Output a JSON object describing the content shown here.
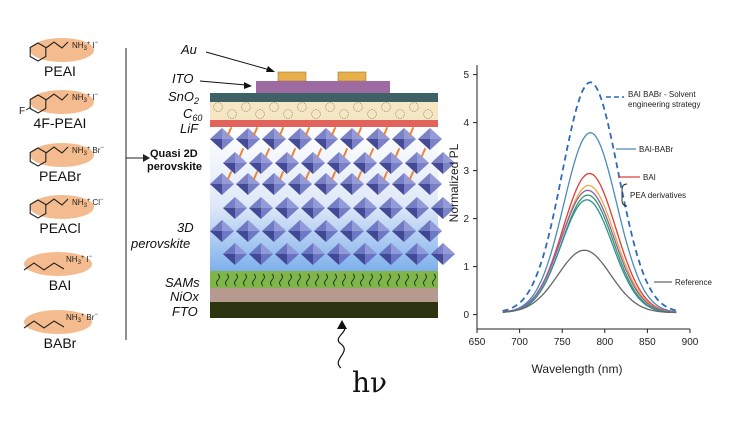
{
  "molecules": [
    {
      "name": "PEAI",
      "ion": "NH",
      "charge_sup": "+",
      "anion": "I",
      "ring": "phenyl",
      "substituent": ""
    },
    {
      "name": "4F-PEAI",
      "ion": "NH",
      "charge_sup": "+",
      "anion": "I",
      "ring": "phenyl",
      "substituent": "F"
    },
    {
      "name": "PEABr",
      "ion": "NH",
      "charge_sup": "+",
      "anion": "Br",
      "ring": "phenyl",
      "substituent": ""
    },
    {
      "name": "PEACl",
      "ion": "NH",
      "charge_sup": "+",
      "anion": "Cl",
      "ring": "phenyl",
      "substituent": ""
    },
    {
      "name": "BAI",
      "ion": "NH",
      "charge_sup": "+",
      "anion": "I",
      "ring": "butyl",
      "substituent": ""
    },
    {
      "name": "BABr",
      "ion": "NH",
      "charge_sup": "+",
      "anion": "Br",
      "ring": "butyl",
      "substituent": ""
    }
  ],
  "device": {
    "layers": [
      "Au",
      "ITO",
      "SnO2",
      "C60",
      "LiF",
      "Quasi 2D perovskite",
      "3D perovskite",
      "SAMs",
      "NiOx",
      "FTO"
    ],
    "labels": {
      "au": "Au",
      "ito": "ITO",
      "sno2": "SnO",
      "sno2_sub": "2",
      "c60": "C",
      "c60_sub": "60",
      "lif": "LiF",
      "quasi2d_line1": "Quasi 2D",
      "quasi2d_line2": "perovskite",
      "perov3d_line1": "3D",
      "perov3d_line2": "perovskite",
      "sams": "SAMs",
      "niox": "NiOx",
      "fto": "FTO"
    },
    "light": "hν",
    "colors": {
      "au": "#e8b04a",
      "ito": "#9e6aa2",
      "sno2": "#3e6166",
      "c60": "#f5e6c4",
      "lif": "#e2625c",
      "sams": "#7fb54a",
      "niox": "#b79a8f",
      "fto": "#2d3510",
      "octahedra": "#5b63b8",
      "spacer": "#e8873a"
    }
  },
  "chart_data": {
    "type": "line",
    "xlabel": "Wavelength (nm)",
    "ylabel": "Normalized PL",
    "xlim": [
      650,
      900
    ],
    "ylim": [
      -0.3,
      5.2
    ],
    "xticks": [
      650,
      700,
      750,
      800,
      850,
      900
    ],
    "yticks": [
      0,
      1,
      2,
      3,
      4,
      5
    ],
    "series": [
      {
        "name": "BAI BABr - Solvent engineering strategy",
        "peak_x": 783,
        "peak": 4.8,
        "sigma": 33,
        "baseline": 0.04,
        "color": "#2e6bb8",
        "dash": true
      },
      {
        "name": "BAI-BABr",
        "peak_x": 783,
        "peak": 3.75,
        "sigma": 31,
        "baseline": 0.04,
        "color": "#4a8bb9",
        "dash": false
      },
      {
        "name": "BAI",
        "peak_x": 782,
        "peak": 2.9,
        "sigma": 31,
        "baseline": 0.04,
        "color": "#e03c3c",
        "dash": false
      },
      {
        "name": "",
        "peak_x": 781,
        "peak": 2.65,
        "sigma": 31,
        "baseline": 0.04,
        "color": "#f0a93a",
        "dash": false
      },
      {
        "name": "",
        "peak_x": 780,
        "peak": 2.55,
        "sigma": 31,
        "baseline": 0.04,
        "color": "#8a5fb0",
        "dash": false
      },
      {
        "name": "",
        "peak_x": 780,
        "peak": 2.45,
        "sigma": 30,
        "baseline": 0.04,
        "color": "#3a9a5a",
        "dash": false
      },
      {
        "name": "",
        "peak_x": 779,
        "peak": 2.35,
        "sigma": 30,
        "baseline": 0.04,
        "color": "#2f8f9a",
        "dash": false
      },
      {
        "name": "Reference",
        "peak_x": 776,
        "peak": 1.3,
        "sigma": 31,
        "baseline": 0.04,
        "color": "#666666",
        "dash": false
      }
    ],
    "annotations": [
      "BAI BABr - Solvent",
      "engineering strategy",
      "BAI-BABr",
      "BAI",
      "PEA derivatives",
      "Reference"
    ]
  }
}
